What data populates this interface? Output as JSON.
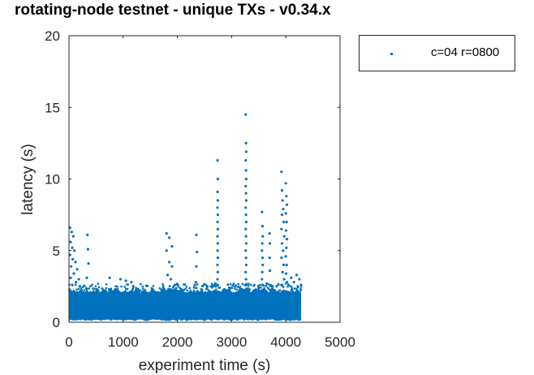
{
  "chart_data": {
    "type": "scatter",
    "title": "rotating-node testnet - unique TXs - v0.34.x",
    "xlabel": "experiment time (s)",
    "ylabel": "latency (s)",
    "xlim": [
      0,
      5000
    ],
    "ylim": [
      0,
      20
    ],
    "xticks": [
      0,
      1000,
      2000,
      3000,
      4000,
      5000
    ],
    "yticks": [
      0,
      5,
      10,
      15,
      20
    ],
    "grid": false,
    "legend_position": "outside-top-right",
    "series": [
      {
        "name": "c=04 r=0800",
        "color": "#0072BD",
        "marker": "point",
        "dense_band": {
          "x_range": [
            0,
            4300
          ],
          "y_range": [
            0.2,
            2.3
          ]
        },
        "outliers": [
          [
            20,
            6.6
          ],
          [
            50,
            6.3
          ],
          [
            80,
            6.0
          ],
          [
            30,
            5.6
          ],
          [
            60,
            5.2
          ],
          [
            100,
            5.0
          ],
          [
            20,
            4.7
          ],
          [
            70,
            4.4
          ],
          [
            120,
            4.2
          ],
          [
            40,
            3.9
          ],
          [
            150,
            3.7
          ],
          [
            90,
            3.4
          ],
          [
            30,
            3.1
          ],
          [
            180,
            3.0
          ],
          [
            130,
            2.8
          ],
          [
            60,
            2.6
          ],
          [
            200,
            2.5
          ],
          [
            340,
            6.1
          ],
          [
            350,
            5.1
          ],
          [
            360,
            4.1
          ],
          [
            330,
            3.1
          ],
          [
            750,
            3.1
          ],
          [
            950,
            3.0
          ],
          [
            1050,
            2.9
          ],
          [
            1150,
            2.8
          ],
          [
            1800,
            6.2
          ],
          [
            1850,
            5.9
          ],
          [
            1900,
            5.3
          ],
          [
            1800,
            5.0
          ],
          [
            1850,
            4.2
          ],
          [
            1900,
            3.9
          ],
          [
            1820,
            3.3
          ],
          [
            1880,
            3.0
          ],
          [
            1950,
            2.6
          ],
          [
            2350,
            6.1
          ],
          [
            2360,
            4.9
          ],
          [
            2350,
            3.9
          ],
          [
            2340,
            2.8
          ],
          [
            2550,
            2.5
          ],
          [
            2700,
            2.7
          ],
          [
            2740,
            11.3
          ],
          [
            2745,
            10.0
          ],
          [
            2740,
            9.1
          ],
          [
            2745,
            8.5
          ],
          [
            2740,
            8.0
          ],
          [
            2745,
            7.5
          ],
          [
            2740,
            7.0
          ],
          [
            2745,
            6.5
          ],
          [
            2740,
            6.0
          ],
          [
            2745,
            5.5
          ],
          [
            2740,
            5.0
          ],
          [
            2745,
            4.5
          ],
          [
            2740,
            4.0
          ],
          [
            2745,
            3.5
          ],
          [
            2740,
            3.0
          ],
          [
            2745,
            2.6
          ],
          [
            3260,
            14.5
          ],
          [
            3265,
            12.5
          ],
          [
            3270,
            11.9
          ],
          [
            3260,
            11.3
          ],
          [
            3265,
            10.6
          ],
          [
            3270,
            10.0
          ],
          [
            3260,
            9.5
          ],
          [
            3265,
            9.0
          ],
          [
            3270,
            8.5
          ],
          [
            3260,
            8.0
          ],
          [
            3265,
            7.5
          ],
          [
            3270,
            7.0
          ],
          [
            3260,
            6.5
          ],
          [
            3265,
            6.0
          ],
          [
            3270,
            5.5
          ],
          [
            3260,
            5.0
          ],
          [
            3265,
            4.5
          ],
          [
            3270,
            4.0
          ],
          [
            3260,
            3.5
          ],
          [
            3265,
            3.0
          ],
          [
            3270,
            2.6
          ],
          [
            3560,
            7.7
          ],
          [
            3570,
            6.7
          ],
          [
            3575,
            6.0
          ],
          [
            3565,
            5.5
          ],
          [
            3560,
            5.0
          ],
          [
            3570,
            4.5
          ],
          [
            3575,
            4.0
          ],
          [
            3565,
            3.5
          ],
          [
            3560,
            3.0
          ],
          [
            3570,
            2.6
          ],
          [
            3700,
            6.2
          ],
          [
            3705,
            5.5
          ],
          [
            3700,
            4.5
          ],
          [
            3705,
            3.6
          ],
          [
            3650,
            2.7
          ],
          [
            3920,
            10.5
          ],
          [
            3930,
            9.2
          ],
          [
            3940,
            8.5
          ],
          [
            3950,
            7.9
          ],
          [
            3930,
            7.5
          ],
          [
            3960,
            7.0
          ],
          [
            3920,
            6.5
          ],
          [
            3970,
            6.0
          ],
          [
            3930,
            5.5
          ],
          [
            3950,
            5.0
          ],
          [
            3920,
            4.5
          ],
          [
            3960,
            4.0
          ],
          [
            3940,
            3.5
          ],
          [
            3970,
            3.0
          ],
          [
            3920,
            2.6
          ],
          [
            4000,
            9.7
          ],
          [
            4010,
            8.8
          ],
          [
            4020,
            8.2
          ],
          [
            4000,
            7.6
          ],
          [
            4015,
            7.0
          ],
          [
            4005,
            6.4
          ],
          [
            4020,
            5.8
          ],
          [
            4010,
            5.2
          ],
          [
            4000,
            4.6
          ],
          [
            4015,
            4.0
          ],
          [
            4005,
            3.4
          ],
          [
            4020,
            2.8
          ],
          [
            4100,
            3.1
          ],
          [
            4150,
            2.8
          ],
          [
            4200,
            3.3
          ],
          [
            4250,
            3.0
          ],
          [
            4280,
            2.6
          ]
        ]
      }
    ]
  }
}
